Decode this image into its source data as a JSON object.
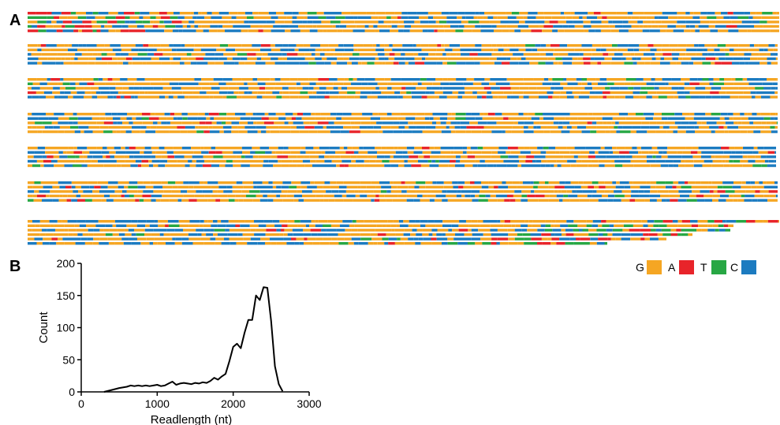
{
  "panels": {
    "a": {
      "label": "A"
    },
    "b": {
      "label": "B"
    }
  },
  "legend": [
    {
      "base": "G",
      "color": "#F5A623"
    },
    {
      "base": "A",
      "color": "#E8242A"
    },
    {
      "base": "T",
      "color": "#27A744"
    },
    {
      "base": "C",
      "color": "#1C7BC0"
    }
  ],
  "chart_data": [
    {
      "type": "heatmap",
      "panel": "A",
      "description_of_marks": "Six blocks of five stacked reads each, plus a trailing block of six reads of decreasing length; each read is a horizontal strip of colored bases.",
      "base_frequencies": {
        "G": 0.55,
        "C": 0.37,
        "A": 0.04,
        "T": 0.04
      },
      "blocks": 7
    },
    {
      "type": "line",
      "panel": "B",
      "xlabel": "Readlength (nt)",
      "ylabel": "Count",
      "xlim": [
        0,
        3000
      ],
      "ylim": [
        0,
        200
      ],
      "xticks": [
        0,
        1000,
        2000,
        3000
      ],
      "yticks": [
        0,
        50,
        100,
        150,
        200
      ],
      "grid": false,
      "series": [
        {
          "x": [
            300,
            400,
            500,
            600,
            650,
            700,
            750,
            800,
            850,
            900,
            950,
            1000,
            1050,
            1100,
            1150,
            1200,
            1250,
            1300,
            1350,
            1400,
            1450,
            1500,
            1550,
            1600,
            1650,
            1700,
            1750,
            1800,
            1850,
            1900,
            1950,
            2000,
            2050,
            2100,
            2150,
            2200,
            2250,
            2300,
            2350,
            2400,
            2450,
            2500,
            2550,
            2600,
            2650
          ],
          "y": [
            0,
            3,
            6,
            8,
            10,
            9,
            10,
            9,
            10,
            9,
            10,
            11,
            9,
            10,
            13,
            16,
            11,
            13,
            14,
            13,
            12,
            14,
            13,
            15,
            14,
            17,
            22,
            19,
            24,
            28,
            48,
            70,
            75,
            68,
            92,
            112,
            112,
            150,
            143,
            163,
            162,
            110,
            40,
            12,
            1
          ]
        }
      ]
    }
  ]
}
